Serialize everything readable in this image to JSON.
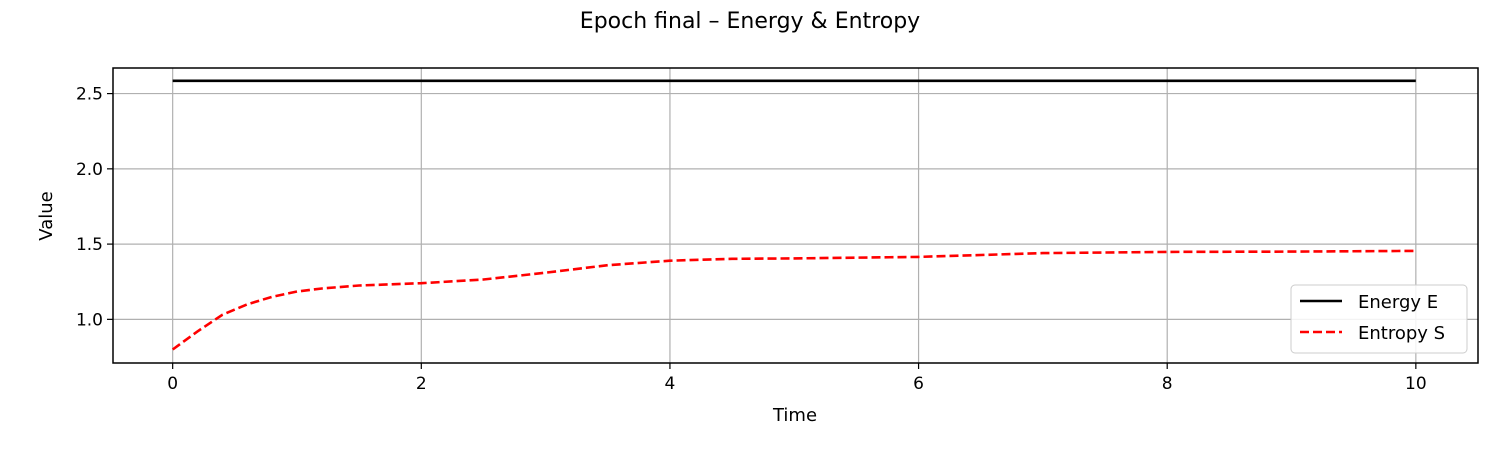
{
  "chart_data": {
    "type": "line",
    "title": "Epoch final – Energy & Entropy",
    "xlabel": "Time",
    "ylabel": "Value",
    "xlim": [
      -0.48,
      10.5
    ],
    "ylim": [
      0.71,
      2.67
    ],
    "xticks": [
      0,
      2,
      4,
      6,
      8,
      10
    ],
    "xtick_labels": [
      "0",
      "2",
      "4",
      "6",
      "8",
      "10"
    ],
    "yticks": [
      1.0,
      1.5,
      2.0,
      2.5
    ],
    "ytick_labels": [
      "1.0",
      "1.5",
      "2.0",
      "2.5"
    ],
    "grid": true,
    "legend_position": "lower right",
    "series": [
      {
        "name": "Energy E",
        "color": "#000000",
        "style": "solid",
        "x": [
          0,
          10
        ],
        "y": [
          2.585,
          2.585
        ]
      },
      {
        "name": "Entropy S",
        "color": "#ff0000",
        "style": "dashed",
        "x": [
          0,
          0.2,
          0.4,
          0.6,
          0.8,
          1.0,
          1.2,
          1.5,
          2.0,
          2.5,
          3.0,
          3.5,
          4.0,
          4.5,
          5.0,
          6.0,
          7.0,
          8.0,
          9.0,
          10.0
        ],
        "y": [
          0.8,
          0.92,
          1.03,
          1.1,
          1.15,
          1.185,
          1.205,
          1.225,
          1.24,
          1.265,
          1.31,
          1.36,
          1.39,
          1.402,
          1.405,
          1.415,
          1.44,
          1.448,
          1.45,
          1.455
        ]
      }
    ]
  }
}
